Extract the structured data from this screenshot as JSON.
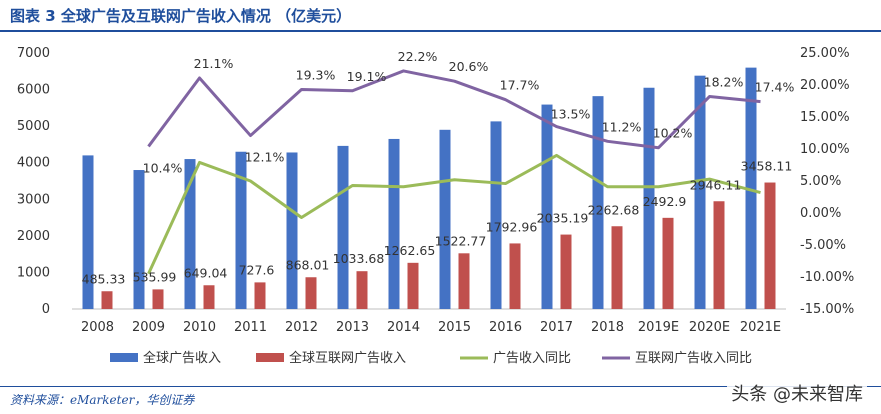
{
  "figure": {
    "title": "图表 3  全球广告及互联网广告收入情况 （亿美元）",
    "source": "资料来源：eMarketer，华创证券",
    "watermark": "头条 @未来智库"
  },
  "colors": {
    "blue": "#4472c4",
    "red": "#c0504d",
    "green": "#9bbb59",
    "purple": "#8064a2",
    "title": "#1f4e9c"
  },
  "chart_data": {
    "type": "bar",
    "categories": [
      "2008",
      "2009",
      "2010",
      "2011",
      "2012",
      "2013",
      "2014",
      "2015",
      "2016",
      "2017",
      "2018",
      "2019E",
      "2020E",
      "2021E"
    ],
    "y_left": {
      "min": 0,
      "max": 7000,
      "step": 1000,
      "ticks": [
        "0",
        "1000",
        "2000",
        "3000",
        "4000",
        "5000",
        "6000",
        "7000"
      ]
    },
    "y_right": {
      "min": -15,
      "max": 25,
      "step": 5,
      "ticks": [
        "-15.00%",
        "-10.00%",
        "-5.00%",
        "0.00%",
        "5.00%",
        "10.00%",
        "15.00%",
        "20.00%",
        "25.00%"
      ]
    },
    "legend": [
      "全球广告收入",
      "全球互联网广告收入",
      "广告收入同比",
      "互联网广告收入同比"
    ],
    "legend_position": "bottom",
    "series": [
      {
        "name": "全球广告收入",
        "kind": "bar",
        "axis": "left",
        "values": [
          4200,
          3800,
          4100,
          4300,
          4280,
          4460,
          4650,
          4900,
          5130,
          5590,
          5820,
          6050,
          6380,
          6600
        ]
      },
      {
        "name": "全球互联网广告收入",
        "kind": "bar",
        "axis": "left",
        "values": [
          485.33,
          535.99,
          649.04,
          727.6,
          868.01,
          1033.68,
          1262.65,
          1522.77,
          1792.96,
          2035.19,
          2262.68,
          2492.9,
          2946.11,
          3458.11
        ],
        "labels": [
          "485.33",
          "535.99",
          "649.04",
          "727.6",
          "868.01",
          "1033.68",
          "1262.65",
          "1522.77",
          "1792.96",
          "2035.19",
          "2262.68",
          "2492.9",
          "2946.11",
          "3458.11"
        ]
      },
      {
        "name": "广告收入同比",
        "kind": "line",
        "axis": "right",
        "values": [
          null,
          -9.5,
          7.9,
          5.0,
          -0.7,
          4.3,
          4.1,
          5.2,
          4.6,
          9.0,
          4.1,
          4.1,
          5.3,
          3.2
        ]
      },
      {
        "name": "互联网广告收入同比",
        "kind": "line",
        "axis": "right",
        "values": [
          null,
          10.4,
          21.1,
          12.1,
          19.3,
          19.1,
          22.2,
          20.6,
          17.7,
          13.5,
          11.2,
          10.2,
          18.2,
          17.4
        ],
        "labels": [
          "",
          "10.4%",
          "21.1%",
          "12.1%",
          "19.3%",
          "19.1%",
          "22.2%",
          "20.6%",
          "17.7%",
          "13.5%",
          "11.2%",
          "10.2%",
          "18.2%",
          "17.4%"
        ]
      }
    ]
  }
}
